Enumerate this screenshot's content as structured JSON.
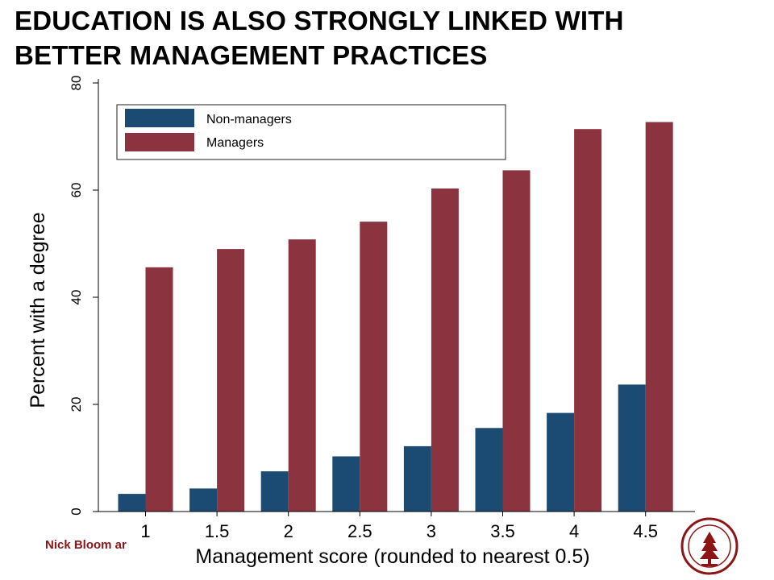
{
  "slide": {
    "title_line1": "EDUCATION IS ALSO STRONGLY LINKED WITH",
    "title_line2": "BETTER MANAGEMENT PRACTICES",
    "footer_author": "Nick Bloom ar"
  },
  "colors": {
    "non_managers": "#1b4a73",
    "managers": "#8b343f",
    "footer": "#8c1515"
  },
  "chart_data": {
    "type": "bar",
    "title": "",
    "xlabel": "Management score (rounded to nearest 0.5)",
    "ylabel": "Percent with a degree",
    "categories": [
      "1",
      "1.5",
      "2",
      "2.5",
      "3",
      "3.5",
      "4",
      "4.5"
    ],
    "series": [
      {
        "name": "Non-managers",
        "values": [
          3.3,
          4.3,
          7.5,
          10.3,
          12.2,
          15.6,
          18.4,
          23.7
        ]
      },
      {
        "name": "Managers",
        "values": [
          45.6,
          49.0,
          50.8,
          54.1,
          60.3,
          63.7,
          71.4,
          72.7
        ]
      }
    ],
    "ylim": [
      0,
      80
    ],
    "yticks": [
      "0",
      "20",
      "40",
      "60",
      "80"
    ],
    "grid": false,
    "legend_placement": "top-left"
  }
}
